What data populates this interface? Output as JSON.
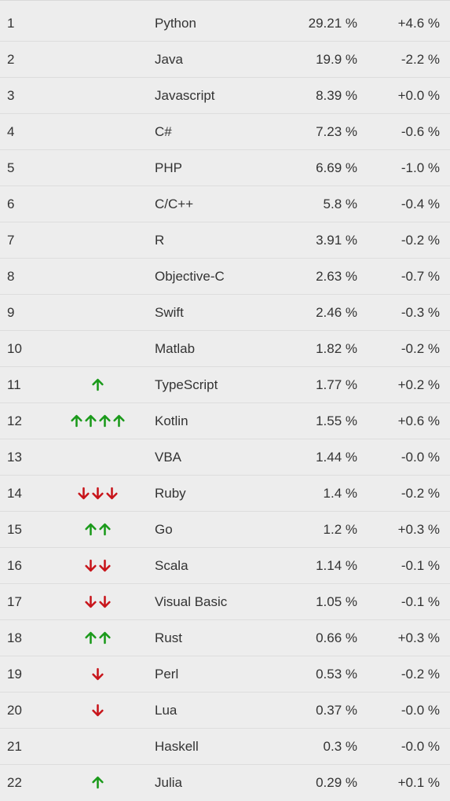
{
  "colors": {
    "up": "#1a9a1a",
    "down": "#c8151b"
  },
  "rows": [
    {
      "rank": "1",
      "language": "Python",
      "share": "29.21 %",
      "change": "+4.6 %",
      "trend": {
        "direction": "none",
        "count": 0
      }
    },
    {
      "rank": "2",
      "language": "Java",
      "share": "19.9 %",
      "change": "-2.2 %",
      "trend": {
        "direction": "none",
        "count": 0
      }
    },
    {
      "rank": "3",
      "language": "Javascript",
      "share": "8.39 %",
      "change": "+0.0 %",
      "trend": {
        "direction": "none",
        "count": 0
      }
    },
    {
      "rank": "4",
      "language": "C#",
      "share": "7.23 %",
      "change": "-0.6 %",
      "trend": {
        "direction": "none",
        "count": 0
      }
    },
    {
      "rank": "5",
      "language": "PHP",
      "share": "6.69 %",
      "change": "-1.0 %",
      "trend": {
        "direction": "none",
        "count": 0
      }
    },
    {
      "rank": "6",
      "language": "C/C++",
      "share": "5.8 %",
      "change": "-0.4 %",
      "trend": {
        "direction": "none",
        "count": 0
      }
    },
    {
      "rank": "7",
      "language": "R",
      "share": "3.91 %",
      "change": "-0.2 %",
      "trend": {
        "direction": "none",
        "count": 0
      }
    },
    {
      "rank": "8",
      "language": "Objective-C",
      "share": "2.63 %",
      "change": "-0.7 %",
      "trend": {
        "direction": "none",
        "count": 0
      }
    },
    {
      "rank": "9",
      "language": "Swift",
      "share": "2.46 %",
      "change": "-0.3 %",
      "trend": {
        "direction": "none",
        "count": 0
      }
    },
    {
      "rank": "10",
      "language": "Matlab",
      "share": "1.82 %",
      "change": "-0.2 %",
      "trend": {
        "direction": "none",
        "count": 0
      }
    },
    {
      "rank": "11",
      "language": "TypeScript",
      "share": "1.77 %",
      "change": "+0.2 %",
      "trend": {
        "direction": "up",
        "count": 1
      }
    },
    {
      "rank": "12",
      "language": "Kotlin",
      "share": "1.55 %",
      "change": "+0.6 %",
      "trend": {
        "direction": "up",
        "count": 4
      }
    },
    {
      "rank": "13",
      "language": "VBA",
      "share": "1.44 %",
      "change": "-0.0 %",
      "trend": {
        "direction": "none",
        "count": 0
      }
    },
    {
      "rank": "14",
      "language": "Ruby",
      "share": "1.4 %",
      "change": "-0.2 %",
      "trend": {
        "direction": "down",
        "count": 3
      }
    },
    {
      "rank": "15",
      "language": "Go",
      "share": "1.2 %",
      "change": "+0.3 %",
      "trend": {
        "direction": "up",
        "count": 2
      }
    },
    {
      "rank": "16",
      "language": "Scala",
      "share": "1.14 %",
      "change": "-0.1 %",
      "trend": {
        "direction": "down",
        "count": 2
      }
    },
    {
      "rank": "17",
      "language": "Visual Basic",
      "share": "1.05 %",
      "change": "-0.1 %",
      "trend": {
        "direction": "down",
        "count": 2
      }
    },
    {
      "rank": "18",
      "language": "Rust",
      "share": "0.66 %",
      "change": "+0.3 %",
      "trend": {
        "direction": "up",
        "count": 2
      }
    },
    {
      "rank": "19",
      "language": "Perl",
      "share": "0.53 %",
      "change": "-0.2 %",
      "trend": {
        "direction": "down",
        "count": 1
      }
    },
    {
      "rank": "20",
      "language": "Lua",
      "share": "0.37 %",
      "change": "-0.0 %",
      "trend": {
        "direction": "down",
        "count": 1
      }
    },
    {
      "rank": "21",
      "language": "Haskell",
      "share": "0.3 %",
      "change": "-0.0 %",
      "trend": {
        "direction": "none",
        "count": 0
      }
    },
    {
      "rank": "22",
      "language": "Julia",
      "share": "0.29 %",
      "change": "+0.1 %",
      "trend": {
        "direction": "up",
        "count": 1
      }
    }
  ]
}
